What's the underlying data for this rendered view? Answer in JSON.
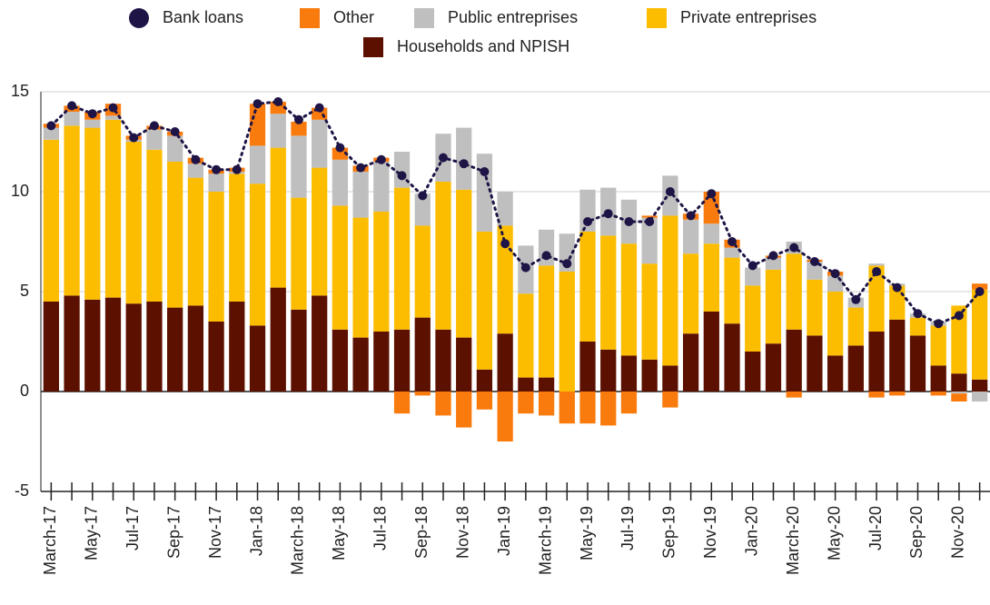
{
  "chart_data": {
    "type": "bar",
    "stacked": true,
    "categories": [
      "March-17",
      null,
      "May-17",
      null,
      "Jul-17",
      null,
      "Sep-17",
      null,
      "Nov-17",
      null,
      "Jan-18",
      null,
      "March-18",
      null,
      "May-18",
      null,
      "Jul-18",
      null,
      "Sep-18",
      null,
      "Nov-18",
      null,
      "Jan-19",
      null,
      "March-19",
      null,
      "May-19",
      null,
      "Jul-19",
      null,
      "Sep-19",
      null,
      "Nov-19",
      null,
      "Jan-20",
      null,
      "March-20",
      null,
      "May-20",
      null,
      "Jul-20",
      null,
      "Sep-20",
      null,
      "Nov-20",
      null
    ],
    "series": [
      {
        "name": "Bank loans",
        "type": "line",
        "color": "#1f1446",
        "values": [
          13.3,
          14.3,
          13.9,
          14.2,
          12.7,
          13.3,
          13.0,
          11.6,
          11.1,
          11.1,
          14.4,
          14.5,
          13.6,
          14.2,
          12.2,
          11.2,
          11.6,
          10.8,
          9.8,
          11.7,
          11.4,
          11.0,
          7.4,
          6.2,
          6.8,
          6.4,
          8.5,
          8.9,
          8.5,
          8.5,
          10.0,
          8.8,
          9.9,
          7.5,
          6.3,
          6.8,
          7.2,
          6.5,
          5.9,
          4.6,
          6.0,
          5.2,
          3.9,
          3.4,
          3.8,
          5.0
        ]
      },
      {
        "name": "Other",
        "color": "#f97b0e",
        "values": [
          0.2,
          0.3,
          0.4,
          0.6,
          0.2,
          0.2,
          0.2,
          0.3,
          0.2,
          0.2,
          2.1,
          0.6,
          0.7,
          0.6,
          0.6,
          0.3,
          0.2,
          -1.1,
          -0.2,
          -1.2,
          -1.8,
          -0.9,
          -2.5,
          -1.1,
          -1.2,
          -1.6,
          -1.6,
          -1.7,
          -1.1,
          0.1,
          -0.8,
          0.3,
          1.6,
          0.4,
          0,
          0.1,
          -0.3,
          0.1,
          0.2,
          0,
          -0.3,
          -0.2,
          0,
          -0.2,
          -0.4,
          0.3
        ]
      },
      {
        "name": "Public entreprises",
        "color": "#bfbfbf",
        "values": [
          0.6,
          0.7,
          0.4,
          0.2,
          0.1,
          1.0,
          1.3,
          0.7,
          0.9,
          0.1,
          1.9,
          1.7,
          3.1,
          2.4,
          2.3,
          2.3,
          2.5,
          1.8,
          1.6,
          2.4,
          3.1,
          3.9,
          1.7,
          2.4,
          1.8,
          1.9,
          2.1,
          2.4,
          2.2,
          2.3,
          2.0,
          1.7,
          1.0,
          0.5,
          0.9,
          0.6,
          0.6,
          0.9,
          0.8,
          0.5,
          0.1,
          0.1,
          0.2,
          0.2,
          -0.1,
          -0.5
        ]
      },
      {
        "name": "Private entreprises",
        "color": "#fcbd00",
        "values": [
          8.1,
          8.5,
          8.6,
          8.9,
          8.1,
          7.6,
          7.3,
          6.4,
          6.5,
          6.4,
          7.1,
          7.0,
          5.6,
          6.4,
          6.2,
          6.0,
          6.0,
          7.1,
          4.6,
          7.4,
          7.4,
          6.9,
          5.4,
          4.2,
          5.6,
          6.0,
          5.5,
          5.7,
          5.6,
          4.8,
          7.5,
          4.0,
          3.4,
          3.3,
          3.3,
          3.7,
          3.8,
          2.8,
          3.2,
          1.9,
          3.3,
          1.7,
          0.9,
          2.0,
          3.4,
          4.5
        ]
      },
      {
        "name": "Households and NPISH",
        "color": "#5c1000",
        "values": [
          4.5,
          4.8,
          4.6,
          4.7,
          4.4,
          4.5,
          4.2,
          4.3,
          3.5,
          4.5,
          3.3,
          5.2,
          4.1,
          4.8,
          3.1,
          2.7,
          3.0,
          3.1,
          3.7,
          3.1,
          2.7,
          1.1,
          2.9,
          0.7,
          0.7,
          0.0,
          2.5,
          2.1,
          1.8,
          1.6,
          1.3,
          2.9,
          4.0,
          3.4,
          2.0,
          2.4,
          3.1,
          2.8,
          1.8,
          2.3,
          3.0,
          3.6,
          2.8,
          1.3,
          0.9,
          0.6
        ]
      }
    ],
    "ylim": [
      -5,
      15
    ],
    "yticks": [
      -5,
      0,
      5,
      10,
      15
    ],
    "grid": true,
    "legend": "top"
  }
}
